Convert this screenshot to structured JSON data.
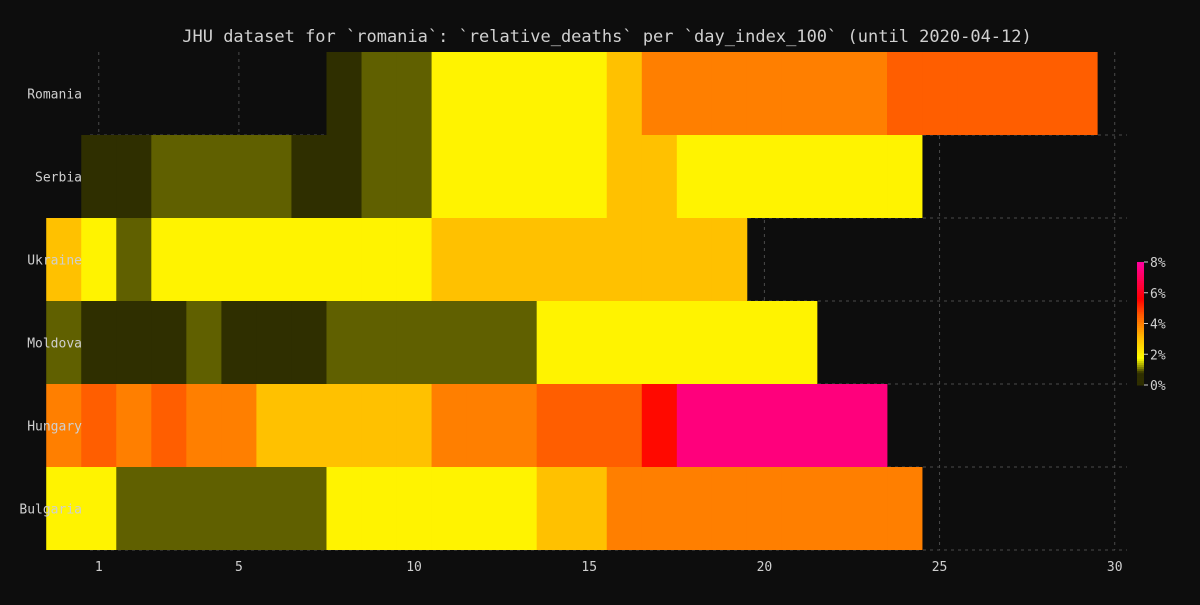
{
  "chart_data": {
    "type": "heatmap",
    "title": "JHU dataset for `romania`: `relative_deaths` per `day_index_100` (until 2020-04-12)",
    "xlabel": "",
    "ylabel": "",
    "x_ticks": [
      1,
      5,
      10,
      15,
      20,
      25,
      30
    ],
    "xlim": [
      0.75,
      30.35
    ],
    "rows": [
      "Romania",
      "Serbia",
      "Ukraine",
      "Moldova",
      "Hungary",
      "Bulgaria"
    ],
    "series": [
      {
        "name": "Romania",
        "start_day": 8,
        "values": [
          0.5,
          1.0,
          1.0,
          2.0,
          2.0,
          2.0,
          2.0,
          2.0,
          3.0,
          4.0,
          4.0,
          4.0,
          4.0,
          4.0,
          4.0,
          4.0,
          4.5,
          4.5,
          4.5,
          4.5,
          4.5,
          4.5
        ]
      },
      {
        "name": "Serbia",
        "start_day": 1,
        "values": [
          0.5,
          0.5,
          1.0,
          1.0,
          1.0,
          1.0,
          0.5,
          0.5,
          1.0,
          1.0,
          2.0,
          2.0,
          2.0,
          2.0,
          2.0,
          3.0,
          3.0,
          2.0,
          2.0,
          2.0,
          2.0,
          2.0,
          2.0,
          2.0
        ]
      },
      {
        "name": "Ukraine",
        "start_day": 0,
        "values": [
          3.0,
          2.0,
          1.0,
          2.0,
          2.0,
          2.0,
          2.0,
          2.0,
          2.0,
          2.0,
          2.0,
          3.0,
          3.0,
          3.0,
          3.0,
          3.0,
          3.0,
          3.0,
          3.0,
          3.0
        ]
      },
      {
        "name": "Moldova",
        "start_day": 0,
        "values": [
          1.0,
          0.5,
          0.5,
          0.5,
          1.0,
          0.5,
          0.5,
          0.5,
          1.0,
          1.0,
          1.0,
          1.0,
          1.0,
          1.0,
          2.0,
          2.0,
          2.0,
          2.0,
          2.0,
          2.0,
          2.0,
          2.0
        ]
      },
      {
        "name": "Hungary",
        "start_day": 0,
        "values": [
          4.0,
          4.5,
          4.0,
          4.5,
          4.0,
          4.0,
          3.0,
          3.0,
          3.0,
          3.0,
          3.0,
          4.0,
          4.0,
          4.0,
          4.5,
          4.5,
          4.5,
          5.5,
          7.5,
          7.5,
          7.5,
          7.5,
          7.5,
          7.5
        ]
      },
      {
        "name": "Bulgaria",
        "start_day": 0,
        "values": [
          2.0,
          2.0,
          1.0,
          1.0,
          1.0,
          1.0,
          1.0,
          1.0,
          2.0,
          2.0,
          2.0,
          2.0,
          2.0,
          2.0,
          3.0,
          3.0,
          4.0,
          4.0,
          4.0,
          4.0,
          4.0,
          4.0,
          4.0,
          4.0,
          4.0
        ]
      }
    ],
    "colorbar": {
      "range": [
        0,
        8
      ],
      "ticks": [
        0,
        2,
        4,
        6,
        8
      ],
      "tick_labels": [
        "0%",
        "2%",
        "4%",
        "6%",
        "8%"
      ]
    },
    "colorscale": [
      [
        0.0,
        "#2f2f00"
      ],
      [
        0.1,
        "#2f2f00"
      ],
      [
        0.15,
        "#919100"
      ],
      [
        0.22,
        "#ffff00"
      ],
      [
        0.38,
        "#ffbf00"
      ],
      [
        0.5,
        "#ff7f00"
      ],
      [
        0.58,
        "#ff5500"
      ],
      [
        0.7,
        "#ff0000"
      ],
      [
        0.9,
        "#ff0066"
      ],
      [
        1.0,
        "#ff00a0"
      ]
    ],
    "background": "#0d0d0d",
    "grid": true
  }
}
